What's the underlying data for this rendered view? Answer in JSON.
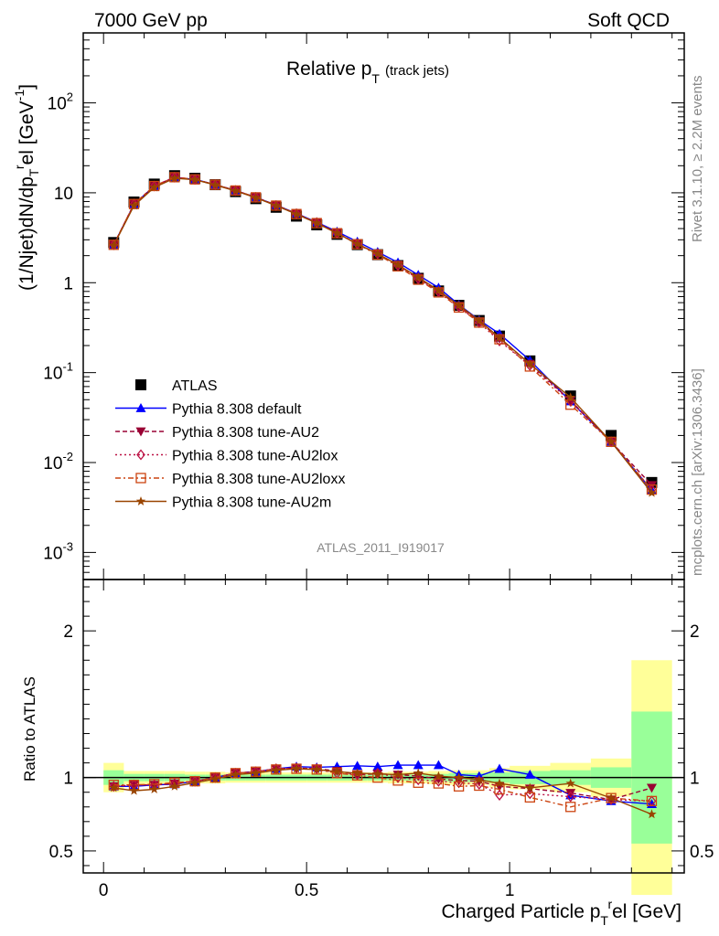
{
  "header": {
    "left": "7000 GeV pp",
    "right": "Soft QCD"
  },
  "side_labels": {
    "rivet": "Rivet 3.1.10, ≥ 2.2M events",
    "mcplots": "mcplots.cern.ch [arXiv:1306.3436]"
  },
  "watermark": "ATLAS_2011_I919017",
  "colors": {
    "atlas": "#000000",
    "default": "#0000ff",
    "au2": "#990033",
    "au2lox": "#bb1144",
    "au2loxx": "#cc4411",
    "au2m": "#994400",
    "band_inner": "#99ff99",
    "band_outer": "#ffff99"
  },
  "chart_data": [
    {
      "type": "line",
      "title": "Relative p_T (track jets)",
      "title_main": "Relative p",
      "title_sub": "T",
      "title_note": "(track jets)",
      "ylabel": "(1/Njet)dN/dp_T^rel [GeV^-1]",
      "ylabel_parts": {
        "a": "(1/Njet)dN/dp",
        "sub": "T",
        "sup": "r",
        "b": "el [GeV",
        "sup2": "-1",
        "c": "]"
      },
      "yscale": "log",
      "ylim": [
        0.0005,
        600
      ],
      "xlim": [
        -0.05,
        1.43
      ],
      "y_tick_labels": [
        "10^-3",
        "10^-2",
        "10^-1",
        "1",
        "10",
        "10^2"
      ],
      "y_ticks": [
        {
          "base": "10",
          "exp": "-3"
        },
        {
          "base": "10",
          "exp": "-2"
        },
        {
          "base": "10",
          "exp": "-1"
        },
        {
          "base": "1",
          "exp": ""
        },
        {
          "base": "10",
          "exp": ""
        },
        {
          "base": "10",
          "exp": "2"
        }
      ],
      "legend_position": "bottom-left",
      "x": [
        0.025,
        0.075,
        0.125,
        0.175,
        0.225,
        0.275,
        0.325,
        0.375,
        0.425,
        0.475,
        0.525,
        0.575,
        0.625,
        0.675,
        0.725,
        0.775,
        0.825,
        0.875,
        0.925,
        0.975,
        1.05,
        1.15,
        1.25,
        1.35
      ],
      "series": [
        {
          "name": "ATLAS",
          "key": "atlas",
          "marker": "square",
          "dash": "",
          "values": [
            2.8,
            7.9,
            12.5,
            15.5,
            14.5,
            12.3,
            10.3,
            8.6,
            6.9,
            5.5,
            4.4,
            3.45,
            2.65,
            2.05,
            1.55,
            1.12,
            0.81,
            0.56,
            0.38,
            0.255,
            0.135,
            0.055,
            0.02,
            0.006
          ]
        },
        {
          "name": "Pythia 8.308 default",
          "key": "default",
          "marker": "triangle-up",
          "dash": "",
          "values": [
            2.64,
            7.4,
            11.9,
            14.8,
            14.1,
            12.3,
            10.6,
            8.9,
            7.3,
            5.9,
            4.7,
            3.7,
            2.86,
            2.2,
            1.68,
            1.22,
            0.88,
            0.57,
            0.385,
            0.27,
            0.137,
            0.048,
            0.017,
            0.0049
          ]
        },
        {
          "name": "Pythia 8.308 tune-AU2",
          "key": "au2",
          "marker": "triangle-down",
          "dash": "5,3",
          "values": [
            2.64,
            7.5,
            11.9,
            14.9,
            14.1,
            12.3,
            10.6,
            8.9,
            7.3,
            5.85,
            4.66,
            3.6,
            2.7,
            2.1,
            1.58,
            1.13,
            0.8,
            0.55,
            0.37,
            0.24,
            0.125,
            0.049,
            0.017,
            0.0056
          ]
        },
        {
          "name": "Pythia 8.308 tune-AU2lox",
          "key": "au2lox",
          "marker": "diamond",
          "dash": "2,3",
          "values": [
            2.64,
            7.5,
            11.9,
            14.9,
            14.1,
            12.3,
            10.6,
            8.9,
            7.2,
            5.85,
            4.66,
            3.55,
            2.7,
            2.1,
            1.55,
            1.1,
            0.79,
            0.54,
            0.36,
            0.225,
            0.12,
            0.048,
            0.017,
            0.005
          ]
        },
        {
          "name": "Pythia 8.308 tune-AU2loxx",
          "key": "au2loxx",
          "marker": "square-open",
          "dash": "6,3,2,3",
          "values": [
            2.64,
            7.5,
            11.9,
            14.9,
            14.1,
            12.3,
            10.6,
            8.9,
            7.2,
            5.8,
            4.6,
            3.55,
            2.68,
            2.05,
            1.52,
            1.08,
            0.78,
            0.53,
            0.36,
            0.235,
            0.117,
            0.044,
            0.017,
            0.005
          ]
        },
        {
          "name": "Pythia 8.308 tune-AU2m",
          "key": "au2m",
          "marker": "star",
          "dash": "",
          "values": [
            2.6,
            7.2,
            11.5,
            14.5,
            14.0,
            12.2,
            10.5,
            8.8,
            7.2,
            5.8,
            4.6,
            3.55,
            2.7,
            2.1,
            1.58,
            1.15,
            0.82,
            0.56,
            0.38,
            0.245,
            0.125,
            0.053,
            0.017,
            0.0046
          ]
        }
      ]
    },
    {
      "type": "line",
      "title": "",
      "ylabel": "Ratio to ATLAS",
      "xlabel": "Charged Particle p_T^rel [GeV]",
      "xlabel_parts": {
        "a": "Charged Particle p",
        "sub": "T",
        "sup": "r",
        "b": "el [GeV]"
      },
      "ylim": [
        0.35,
        2.35
      ],
      "xlim": [
        -0.05,
        1.43
      ],
      "y_tick_labels": [
        "0.5",
        "1",
        "2"
      ],
      "x_tick_labels": [
        "0",
        "0.5",
        "1"
      ],
      "x": [
        0.025,
        0.075,
        0.125,
        0.175,
        0.225,
        0.275,
        0.325,
        0.375,
        0.425,
        0.475,
        0.525,
        0.575,
        0.625,
        0.675,
        0.725,
        0.775,
        0.825,
        0.875,
        0.925,
        0.975,
        1.05,
        1.15,
        1.25,
        1.35
      ],
      "bands": {
        "edges": [
          0.0,
          0.05,
          0.1,
          0.15,
          0.2,
          0.25,
          0.3,
          0.35,
          0.4,
          0.45,
          0.5,
          0.55,
          0.6,
          0.65,
          0.7,
          0.75,
          0.8,
          0.85,
          0.9,
          0.95,
          1.0,
          1.1,
          1.2,
          1.3,
          1.4
        ],
        "inner": [
          0.05,
          0.025,
          0.025,
          0.025,
          0.02,
          0.02,
          0.02,
          0.02,
          0.02,
          0.02,
          0.02,
          0.02,
          0.02,
          0.02,
          0.02,
          0.02,
          0.025,
          0.03,
          0.03,
          0.035,
          0.045,
          0.05,
          0.07,
          0.45
        ],
        "outer": [
          0.1,
          0.045,
          0.045,
          0.045,
          0.04,
          0.04,
          0.035,
          0.035,
          0.035,
          0.035,
          0.035,
          0.035,
          0.035,
          0.035,
          0.04,
          0.04,
          0.045,
          0.05,
          0.05,
          0.065,
          0.08,
          0.1,
          0.13,
          0.8
        ]
      },
      "series": [
        {
          "name": "Pythia 8.308 default",
          "key": "default",
          "marker": "triangle-up",
          "dash": "",
          "values": [
            0.94,
            0.94,
            0.95,
            0.955,
            0.975,
            1.0,
            1.03,
            1.04,
            1.06,
            1.075,
            1.07,
            1.075,
            1.08,
            1.075,
            1.085,
            1.085,
            1.085,
            1.02,
            1.01,
            1.06,
            1.02,
            0.88,
            0.84,
            0.82
          ]
        },
        {
          "name": "Pythia 8.308 tune-AU2",
          "key": "au2",
          "marker": "triangle-down",
          "dash": "5,3",
          "values": [
            0.94,
            0.95,
            0.95,
            0.96,
            0.975,
            1.0,
            1.03,
            1.04,
            1.06,
            1.065,
            1.06,
            1.045,
            1.02,
            1.025,
            1.02,
            1.01,
            0.99,
            0.98,
            0.975,
            0.94,
            0.925,
            0.895,
            0.85,
            0.93
          ]
        },
        {
          "name": "Pythia 8.308 tune-AU2lox",
          "key": "au2lox",
          "marker": "diamond",
          "dash": "2,3",
          "values": [
            0.94,
            0.95,
            0.95,
            0.96,
            0.975,
            1.0,
            1.03,
            1.04,
            1.06,
            1.065,
            1.06,
            1.03,
            1.02,
            1.03,
            1.0,
            0.985,
            0.975,
            0.965,
            0.955,
            0.88,
            0.89,
            0.87,
            0.85,
            0.84
          ]
        },
        {
          "name": "Pythia 8.308 tune-AU2loxx",
          "key": "au2loxx",
          "marker": "square-open",
          "dash": "6,3,2,3",
          "values": [
            0.95,
            0.95,
            0.955,
            0.965,
            0.975,
            1.0,
            1.03,
            1.04,
            1.055,
            1.06,
            1.055,
            1.03,
            1.015,
            1.0,
            0.98,
            0.965,
            0.96,
            0.94,
            0.945,
            0.92,
            0.865,
            0.8,
            0.86,
            0.84
          ]
        },
        {
          "name": "Pythia 8.308 tune-AU2m",
          "key": "au2m",
          "marker": "star",
          "dash": "",
          "values": [
            0.93,
            0.91,
            0.92,
            0.94,
            0.965,
            0.99,
            1.02,
            1.03,
            1.05,
            1.06,
            1.055,
            1.04,
            1.03,
            1.025,
            1.02,
            1.03,
            1.01,
            1.0,
            0.985,
            0.96,
            0.93,
            0.96,
            0.86,
            0.75
          ]
        }
      ]
    }
  ]
}
